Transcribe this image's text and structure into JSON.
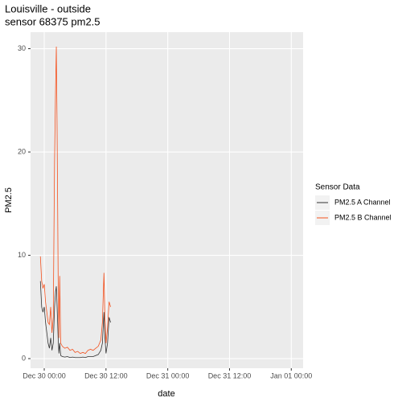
{
  "chart_data": {
    "type": "line",
    "title": "Louisville - outside",
    "subtitle": "sensor 68375 pm2.5",
    "x_label": "date",
    "y_label": "PM2.5",
    "legend_title": "Sensor Data",
    "legend": "right",
    "grid": true,
    "xlim": [
      -2.66,
      50.3
    ],
    "ylim": [
      -0.93,
      31.6
    ],
    "xticks": [
      {
        "value": 0,
        "label": "Dec 30 00:00"
      },
      {
        "value": 12,
        "label": "Dec 30 12:00"
      },
      {
        "value": 24,
        "label": "Dec 31 00:00"
      },
      {
        "value": 36,
        "label": "Dec 31 12:00"
      },
      {
        "value": 48,
        "label": "Jan 01 00:00"
      }
    ],
    "yticks": [
      0,
      10,
      20,
      30
    ],
    "x": [
      -0.75,
      -0.5,
      -0.25,
      0,
      0.25,
      0.5,
      0.75,
      1,
      1.25,
      1.5,
      1.75,
      2,
      2.2,
      2.35,
      2.5,
      2.7,
      2.85,
      3,
      3.2,
      3.5,
      4,
      4.5,
      5,
      5.5,
      6,
      6.5,
      7,
      7.5,
      8,
      8.5,
      9,
      9.5,
      10,
      10.5,
      11,
      11.3,
      11.6,
      11.8,
      12,
      12.3,
      12.6,
      12.9
    ],
    "series": [
      {
        "name": "PM2.5 A Channel",
        "color": "#333333",
        "values": [
          7.5,
          5.0,
          4.5,
          5.0,
          3.5,
          2.5,
          1.5,
          1.0,
          2.0,
          0.8,
          1.5,
          5.0,
          6.5,
          7.0,
          5.0,
          2.0,
          0.5,
          1.5,
          0.3,
          0.2,
          0.15,
          0.2,
          0.1,
          0.15,
          0.1,
          0.1,
          0.1,
          0.15,
          0.1,
          0.2,
          0.2,
          0.2,
          0.3,
          0.4,
          0.8,
          1.5,
          4.5,
          2.0,
          0.5,
          1.5,
          4.0,
          3.5
        ]
      },
      {
        "name": "PM2.5 B Channel",
        "color": "#f4511e",
        "values": [
          9.9,
          7.5,
          6.8,
          7.2,
          5.5,
          4.5,
          3.5,
          3.3,
          5.0,
          2.5,
          4.0,
          19.0,
          26.0,
          30.2,
          22.0,
          8.0,
          2.0,
          8.0,
          1.5,
          1.2,
          1.0,
          1.1,
          0.8,
          0.9,
          0.6,
          0.7,
          0.5,
          0.6,
          0.5,
          0.8,
          0.9,
          0.8,
          1.0,
          1.2,
          1.8,
          3.5,
          8.3,
          4.0,
          1.5,
          3.0,
          5.5,
          5.0
        ]
      }
    ]
  }
}
